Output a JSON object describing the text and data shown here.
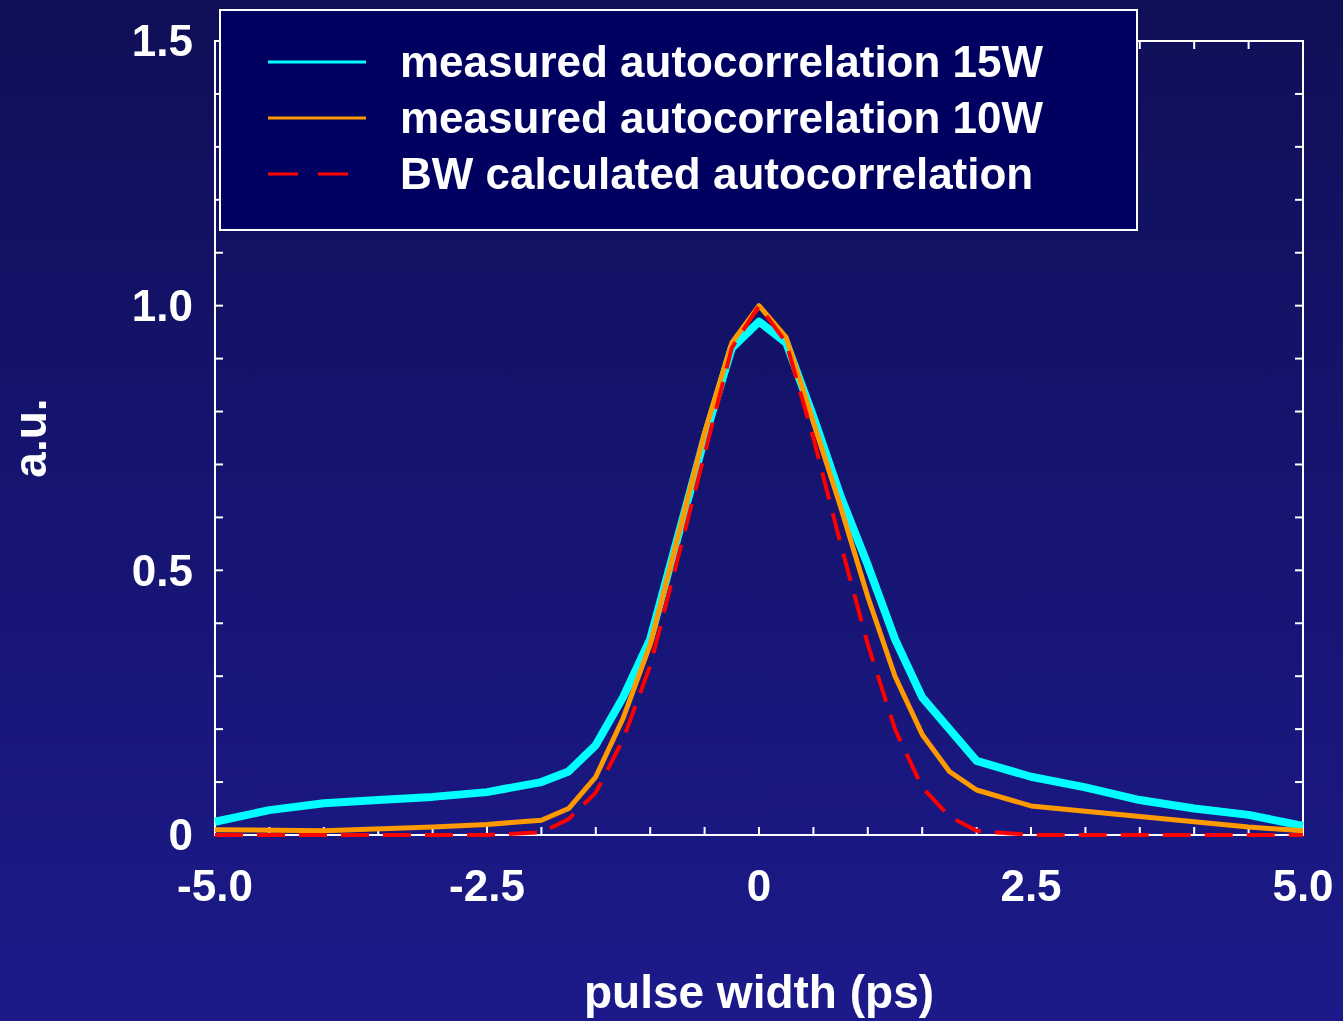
{
  "chart_data": {
    "type": "line",
    "xlabel": "pulse width (ps)",
    "ylabel": "a.u.",
    "xlim": [
      -5,
      5
    ],
    "ylim": [
      0,
      1.5
    ],
    "xticks": [
      {
        "value": -5,
        "label": "-5.0"
      },
      {
        "value": -4.5,
        "label": null
      },
      {
        "value": -4,
        "label": null
      },
      {
        "value": -3.5,
        "label": null
      },
      {
        "value": -3,
        "label": null
      },
      {
        "value": -2.5,
        "label": "-2.5"
      },
      {
        "value": -2,
        "label": null
      },
      {
        "value": -1.5,
        "label": null
      },
      {
        "value": -1,
        "label": null
      },
      {
        "value": -0.5,
        "label": null
      },
      {
        "value": 0,
        "label": "0"
      },
      {
        "value": 0.5,
        "label": null
      },
      {
        "value": 1,
        "label": null
      },
      {
        "value": 1.5,
        "label": null
      },
      {
        "value": 2,
        "label": null
      },
      {
        "value": 2.5,
        "label": "2.5"
      },
      {
        "value": 3,
        "label": null
      },
      {
        "value": 3.5,
        "label": null
      },
      {
        "value": 4,
        "label": null
      },
      {
        "value": 4.5,
        "label": null
      },
      {
        "value": 5,
        "label": "5.0"
      }
    ],
    "yticks": [
      {
        "value": 0,
        "label": "0"
      },
      {
        "value": 0.1,
        "label": null
      },
      {
        "value": 0.2,
        "label": null
      },
      {
        "value": 0.3,
        "label": null
      },
      {
        "value": 0.4,
        "label": null
      },
      {
        "value": 0.5,
        "label": "0.5"
      },
      {
        "value": 0.6,
        "label": null
      },
      {
        "value": 0.7,
        "label": null
      },
      {
        "value": 0.8,
        "label": null
      },
      {
        "value": 0.9,
        "label": null
      },
      {
        "value": 1,
        "label": "1.0"
      },
      {
        "value": 1.1,
        "label": null
      },
      {
        "value": 1.2,
        "label": null
      },
      {
        "value": 1.3,
        "label": null
      },
      {
        "value": 1.4,
        "label": null
      },
      {
        "value": 1.5,
        "label": "1.5"
      }
    ],
    "grid": false,
    "legend": "top left",
    "marker": "none",
    "series": [
      {
        "name": "measured autocorrelation 15W",
        "color": "#00ffff",
        "line_style": "solid",
        "x": [
          -5,
          -4.5,
          -4,
          -3.5,
          -3,
          -2.5,
          -2,
          -1.75,
          -1.5,
          -1.25,
          -1,
          -0.75,
          -0.5,
          -0.25,
          0,
          0.25,
          0.5,
          0.75,
          1,
          1.25,
          1.5,
          1.75,
          2,
          2.5,
          3,
          3.5,
          4,
          4.5,
          5
        ],
        "values": [
          0.025,
          0.047,
          0.06,
          0.066,
          0.072,
          0.081,
          0.1,
          0.12,
          0.17,
          0.26,
          0.37,
          0.56,
          0.75,
          0.92,
          0.97,
          0.93,
          0.79,
          0.64,
          0.51,
          0.37,
          0.26,
          0.2,
          0.14,
          0.11,
          0.09,
          0.066,
          0.05,
          0.038,
          0.017
        ]
      },
      {
        "name": "measured autocorrelation 10W",
        "color": "#ff9900",
        "line_style": "solid",
        "x": [
          -5,
          -4,
          -3,
          -2.5,
          -2,
          -1.75,
          -1.5,
          -1.25,
          -1,
          -0.75,
          -0.5,
          -0.25,
          0,
          0.25,
          0.5,
          0.75,
          1,
          1.25,
          1.5,
          1.75,
          2,
          2.5,
          3,
          3.5,
          4,
          4.5,
          5
        ],
        "values": [
          0.01,
          0.008,
          0.015,
          0.02,
          0.028,
          0.05,
          0.11,
          0.22,
          0.36,
          0.56,
          0.76,
          0.93,
          1.0,
          0.94,
          0.78,
          0.62,
          0.45,
          0.3,
          0.19,
          0.12,
          0.085,
          0.055,
          0.045,
          0.035,
          0.025,
          0.015,
          0.008
        ]
      },
      {
        "name": "BW calculated autocorrelation",
        "color": "#ff0000",
        "line_style": "dashed",
        "x": [
          -5,
          -3,
          -2.5,
          -2,
          -1.75,
          -1.5,
          -1.25,
          -1,
          -0.75,
          -0.5,
          -0.25,
          0,
          0.25,
          0.5,
          0.75,
          1,
          1.25,
          1.5,
          1.75,
          2,
          2.5,
          5
        ],
        "values": [
          0,
          0,
          0,
          0.005,
          0.03,
          0.08,
          0.18,
          0.32,
          0.52,
          0.72,
          0.92,
          1.0,
          0.93,
          0.75,
          0.55,
          0.36,
          0.2,
          0.09,
          0.035,
          0.008,
          0,
          0
        ]
      }
    ]
  }
}
